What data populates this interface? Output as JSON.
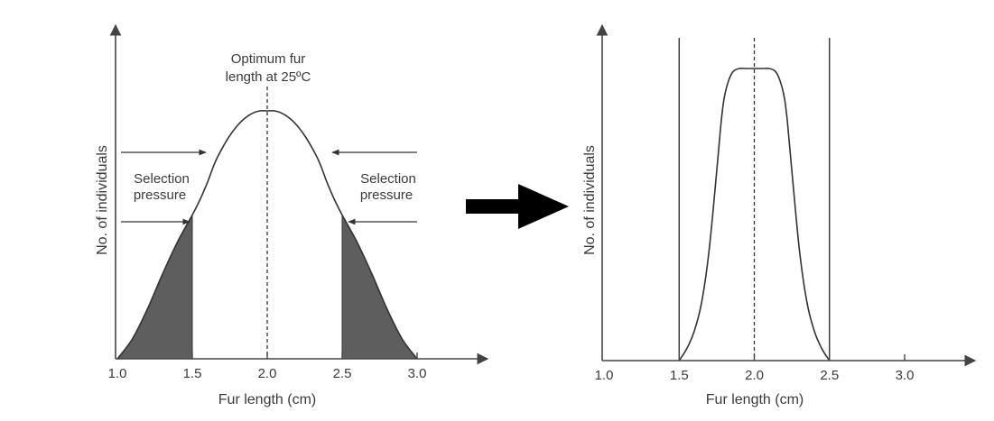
{
  "chart_data": [
    {
      "type": "line",
      "panel": "before",
      "title": "",
      "xlabel": "Fur length (cm)",
      "ylabel": "No. of individuals",
      "xticks": [
        "1.0",
        "1.5",
        "2.0",
        "2.5",
        "3.0"
      ],
      "xlim": [
        1.0,
        3.0
      ],
      "ylim": [
        0,
        1
      ],
      "optimum_x": 2.0,
      "optimum_label": [
        "Optimum fur",
        "length at 25ºC"
      ],
      "selection_label": [
        "Selection",
        "pressure"
      ],
      "shaded_regions": [
        [
          1.0,
          1.5
        ],
        [
          2.5,
          3.0
        ]
      ],
      "series": [
        {
          "x": [
            1.0,
            1.1,
            1.2,
            1.3,
            1.4,
            1.5,
            1.55,
            1.6,
            1.65,
            1.7,
            1.75,
            1.8,
            1.85,
            1.9,
            1.95,
            2.0,
            2.05,
            2.1,
            2.15,
            2.2,
            2.25,
            2.3,
            2.35,
            2.4,
            2.45,
            2.5,
            2.6,
            2.7,
            2.8,
            2.9,
            3.0
          ],
          "y": [
            0.0,
            0.08,
            0.2,
            0.34,
            0.47,
            0.58,
            0.64,
            0.71,
            0.79,
            0.85,
            0.9,
            0.94,
            0.97,
            0.99,
            1.0,
            1.0,
            1.0,
            0.99,
            0.97,
            0.94,
            0.9,
            0.85,
            0.79,
            0.71,
            0.64,
            0.58,
            0.47,
            0.34,
            0.2,
            0.08,
            0.0
          ]
        }
      ]
    },
    {
      "type": "line",
      "panel": "after",
      "title": "",
      "xlabel": "Fur length (cm)",
      "ylabel": "No. of individuals",
      "xticks": [
        "1.0",
        "1.5",
        "2.0",
        "2.5",
        "3.0"
      ],
      "xlim": [
        1.0,
        3.0
      ],
      "ylim": [
        0,
        1
      ],
      "optimum_x": 2.0,
      "bounds": [
        1.5,
        2.5
      ],
      "series": [
        {
          "x": [
            1.5,
            1.55,
            1.6,
            1.65,
            1.7,
            1.75,
            1.78,
            1.8,
            1.83,
            1.86,
            1.9,
            1.95,
            2.0,
            2.05,
            2.1,
            2.14,
            2.17,
            2.2,
            2.22,
            2.25,
            2.3,
            2.35,
            2.4,
            2.45,
            2.5
          ],
          "y": [
            0.0,
            0.04,
            0.1,
            0.2,
            0.38,
            0.65,
            0.82,
            0.9,
            0.96,
            0.99,
            1.0,
            1.0,
            1.0,
            1.0,
            1.0,
            0.99,
            0.96,
            0.9,
            0.82,
            0.65,
            0.38,
            0.2,
            0.1,
            0.04,
            0.0
          ]
        }
      ]
    }
  ]
}
